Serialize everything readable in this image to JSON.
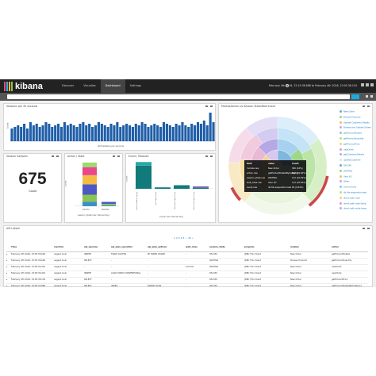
{
  "app": {
    "logo_text": "kibana",
    "logo_colors": [
      "#e8478b",
      "#3caed2",
      "#f4bb45",
      "#8ac64f"
    ],
    "nav": [
      "Discover",
      "Visualize",
      "Dashboard",
      "Settings"
    ],
    "active_nav": "Dashboard",
    "time_range": "February 4th 2016, 22:15:36.686 to February 4th 2016, 23:05:36.104"
  },
  "panels": {
    "sessions": {
      "title": "Sessions per 30 seconds",
      "ylabel": "Count",
      "xlabel": "@timestamp per seconds"
    },
    "samples": {
      "title": "Session Samples",
      "value": "675",
      "label": "Count"
    },
    "action_state": {
      "title": "Action / State",
      "ylabel": "Count",
      "xlabel": "session_state.raw: Descending",
      "categories": [
        "ON CPU",
        "WAITING"
      ]
    },
    "event_modules": {
      "title": "Event / Modules",
      "ylabel": "Count",
      "xlabel": "event.raw: Descending",
      "categories": [
        "db file sequential read",
        "direct path read",
        "direct path read temp",
        "direct path write temp"
      ]
    },
    "sunburst": {
      "title": "Module/Action vs Session State/Wait Event",
      "legend": [
        "New Order",
        "Browse Products",
        "Update Customer Details",
        "Browse and Update Orders",
        "getProductDetails",
        "getProductQuantity",
        "getProductPrice",
        "newOrder",
        "getCustomerDetails",
        "updateCustomer",
        "ON CPU",
        "WAITING",
        "User I/O",
        "Other",
        "Concurrency",
        "db file sequential read",
        "direct path read",
        "direct path read temp",
        "direct path write temp"
      ],
      "tooltip": {
        "headers": [
          "field",
          "value",
          "Count"
        ],
        "rows": [
          [
            "module.raw",
            "New Order",
            "300 (44%)"
          ],
          [
            "action.raw",
            "getProductDetailsByCategory",
            "132 (19.56%)"
          ],
          [
            "session_state.raw",
            "WAITING",
            "112 (16.59%)"
          ],
          [
            "wait_class.raw",
            "User I/O",
            "112 (16.59%)"
          ],
          [
            "event.raw",
            "db file sequential read",
            "65 (9.63%)"
          ]
        ]
      }
    },
    "ash": {
      "title": "ASH detail",
      "pager": "1 2 3 4 5 ... 20 »",
      "columns": [
        "Time",
        "machine",
        "sql_opname",
        "sql_plan_operation",
        "sql_plan_options",
        "wait_class",
        "session_state",
        "program",
        "module",
        "action"
      ],
      "rows": [
        [
          "February 4th 2016, 23:05:36.690",
          "oagent.local",
          "INSERT",
          "TABLE ACCESS",
          "BY INDEX ROWID",
          "-",
          "ON CPU",
          "JDBC Thin Client",
          "New Order",
          "getProductDetails"
        ],
        [
          "February 4th 2016, 23:05:36.690",
          "oagent.local",
          "SELECT",
          "-",
          "-",
          "-",
          "WAITING",
          "JDBC Thin Client",
          "Browse Products",
          "getProductQuantity"
        ],
        [
          "February 4th 2016, 23:05:36.410",
          "oagent.local",
          "-",
          "-",
          "-",
          "Commit",
          "WAITING",
          "JDBC Thin Client",
          "New Order",
          "newOrder"
        ],
        [
          "February 4th 2016, 23:05:36.410",
          "oagent.local",
          "INSERT",
          "LOAD TABLE CONVENTIONAL",
          "-",
          "-",
          "ON CPU",
          "JDBC Thin Client",
          "New Order",
          "newOrder"
        ],
        [
          "February 4th 2016, 23:05:36.130",
          "oagent.local",
          "SELECT",
          "-",
          "-",
          "-",
          "ON CPU",
          "JDBC Thin Client",
          "New Order",
          "getProductPrice"
        ],
        [
          "February 4th 2016, 23:05:35.880",
          "oagent.local",
          "SELECT",
          "INDEX",
          "RANGE SCAN",
          "-",
          "ON CPU",
          "JDBC Thin Client",
          "New Order",
          "getProductDetailsByCategory"
        ]
      ]
    }
  },
  "chart_data": [
    {
      "type": "bar",
      "title": "Sessions per 30 seconds",
      "xlabel": "@timestamp per seconds",
      "ylabel": "Count",
      "ylim": [
        0,
        20
      ],
      "values": [
        8,
        9,
        10,
        9,
        11,
        8,
        12,
        10,
        11,
        9,
        10,
        12,
        11,
        9,
        10,
        11,
        9,
        12,
        10,
        11,
        10,
        9,
        11,
        12,
        10,
        11,
        9,
        10,
        12,
        11,
        10,
        9,
        11,
        10,
        12,
        9,
        10,
        11,
        10,
        9,
        11,
        10,
        12,
        11,
        9,
        10,
        11,
        10,
        9,
        12,
        11,
        10,
        9,
        11,
        10,
        12,
        10,
        9,
        11,
        10,
        12,
        11,
        13,
        10,
        18,
        12
      ]
    },
    {
      "type": "bar",
      "title": "Action / State",
      "categories": [
        "ON CPU",
        "WAITING"
      ],
      "ylim": [
        0,
        400
      ],
      "series": [
        {
          "name": "newOrder",
          "color": "#3c8fc7",
          "values": [
            40,
            8
          ]
        },
        {
          "name": "getProductDetails",
          "color": "#8ac64f",
          "values": [
            60,
            12
          ]
        },
        {
          "name": "getProductQuantity",
          "color": "#4c59c4",
          "values": [
            90,
            18
          ]
        },
        {
          "name": "getProductPrice",
          "color": "#f4bb45",
          "values": [
            80,
            0
          ]
        },
        {
          "name": "getCustomerDetails",
          "color": "#e8478b",
          "values": [
            70,
            0
          ]
        },
        {
          "name": "updateCustomer",
          "color": "#9bdc6c",
          "values": [
            40,
            0
          ]
        }
      ]
    },
    {
      "type": "bar",
      "title": "Event / Modules",
      "categories": [
        "db file sequential read",
        "direct path read",
        "direct path read temp",
        "direct path write temp"
      ],
      "ylim": [
        0,
        80
      ],
      "series": [
        {
          "name": "New Order",
          "color": "#117a7a",
          "values": [
            65,
            4,
            10,
            4
          ]
        },
        {
          "name": "Browse Products",
          "color": "#29a8a8",
          "values": [
            10,
            0,
            0,
            0
          ]
        },
        {
          "name": "Other",
          "color": "#a060c0",
          "values": [
            0,
            0,
            0,
            3
          ]
        }
      ]
    }
  ]
}
